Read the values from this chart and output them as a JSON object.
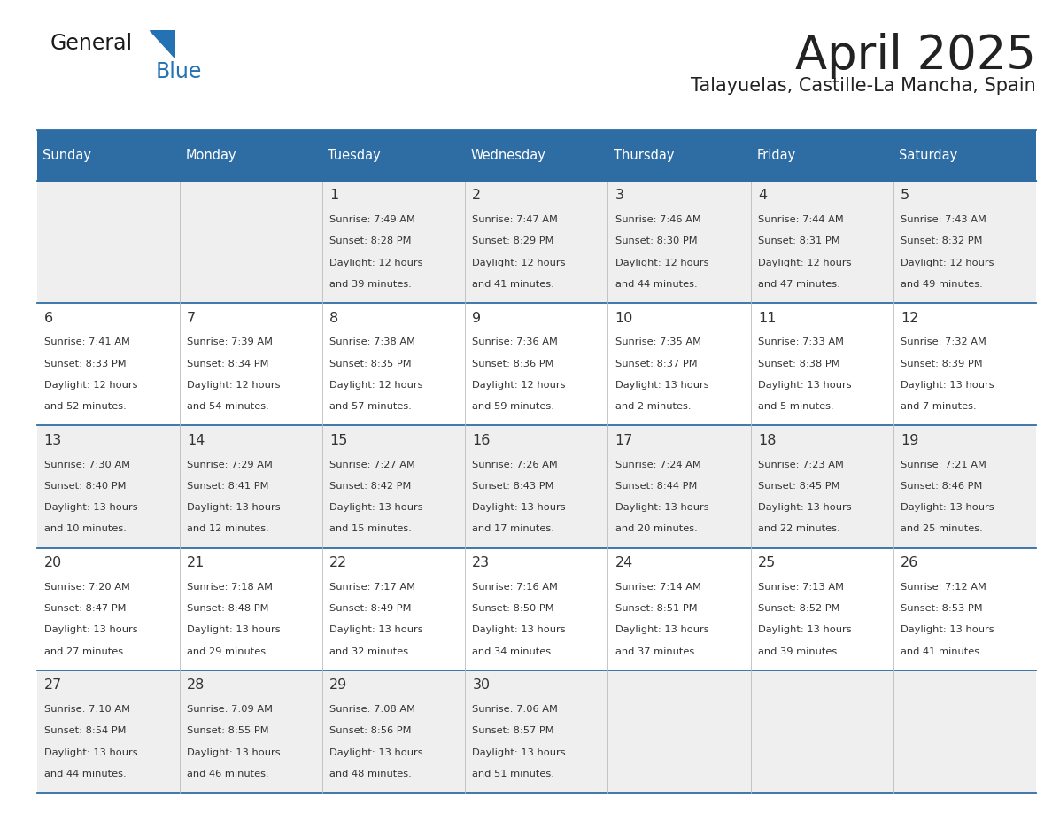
{
  "title": "April 2025",
  "subtitle": "Talayuelas, Castille-La Mancha, Spain",
  "days_of_week": [
    "Sunday",
    "Monday",
    "Tuesday",
    "Wednesday",
    "Thursday",
    "Friday",
    "Saturday"
  ],
  "header_bg": "#2E6DA4",
  "header_text": "#FFFFFF",
  "row_bg_odd": "#EFEFEF",
  "row_bg_even": "#FFFFFF",
  "border_color": "#2E6DA4",
  "text_color": "#333333",
  "title_color": "#222222",
  "subtitle_color": "#222222",
  "weeks": [
    [
      {
        "day": null,
        "sunrise": null,
        "sunset": null,
        "daylight_hours": null,
        "daylight_minutes": null
      },
      {
        "day": null,
        "sunrise": null,
        "sunset": null,
        "daylight_hours": null,
        "daylight_minutes": null
      },
      {
        "day": 1,
        "sunrise": "7:49 AM",
        "sunset": "8:28 PM",
        "daylight_hours": 12,
        "daylight_minutes": 39
      },
      {
        "day": 2,
        "sunrise": "7:47 AM",
        "sunset": "8:29 PM",
        "daylight_hours": 12,
        "daylight_minutes": 41
      },
      {
        "day": 3,
        "sunrise": "7:46 AM",
        "sunset": "8:30 PM",
        "daylight_hours": 12,
        "daylight_minutes": 44
      },
      {
        "day": 4,
        "sunrise": "7:44 AM",
        "sunset": "8:31 PM",
        "daylight_hours": 12,
        "daylight_minutes": 47
      },
      {
        "day": 5,
        "sunrise": "7:43 AM",
        "sunset": "8:32 PM",
        "daylight_hours": 12,
        "daylight_minutes": 49
      }
    ],
    [
      {
        "day": 6,
        "sunrise": "7:41 AM",
        "sunset": "8:33 PM",
        "daylight_hours": 12,
        "daylight_minutes": 52
      },
      {
        "day": 7,
        "sunrise": "7:39 AM",
        "sunset": "8:34 PM",
        "daylight_hours": 12,
        "daylight_minutes": 54
      },
      {
        "day": 8,
        "sunrise": "7:38 AM",
        "sunset": "8:35 PM",
        "daylight_hours": 12,
        "daylight_minutes": 57
      },
      {
        "day": 9,
        "sunrise": "7:36 AM",
        "sunset": "8:36 PM",
        "daylight_hours": 12,
        "daylight_minutes": 59
      },
      {
        "day": 10,
        "sunrise": "7:35 AM",
        "sunset": "8:37 PM",
        "daylight_hours": 13,
        "daylight_minutes": 2
      },
      {
        "day": 11,
        "sunrise": "7:33 AM",
        "sunset": "8:38 PM",
        "daylight_hours": 13,
        "daylight_minutes": 5
      },
      {
        "day": 12,
        "sunrise": "7:32 AM",
        "sunset": "8:39 PM",
        "daylight_hours": 13,
        "daylight_minutes": 7
      }
    ],
    [
      {
        "day": 13,
        "sunrise": "7:30 AM",
        "sunset": "8:40 PM",
        "daylight_hours": 13,
        "daylight_minutes": 10
      },
      {
        "day": 14,
        "sunrise": "7:29 AM",
        "sunset": "8:41 PM",
        "daylight_hours": 13,
        "daylight_minutes": 12
      },
      {
        "day": 15,
        "sunrise": "7:27 AM",
        "sunset": "8:42 PM",
        "daylight_hours": 13,
        "daylight_minutes": 15
      },
      {
        "day": 16,
        "sunrise": "7:26 AM",
        "sunset": "8:43 PM",
        "daylight_hours": 13,
        "daylight_minutes": 17
      },
      {
        "day": 17,
        "sunrise": "7:24 AM",
        "sunset": "8:44 PM",
        "daylight_hours": 13,
        "daylight_minutes": 20
      },
      {
        "day": 18,
        "sunrise": "7:23 AM",
        "sunset": "8:45 PM",
        "daylight_hours": 13,
        "daylight_minutes": 22
      },
      {
        "day": 19,
        "sunrise": "7:21 AM",
        "sunset": "8:46 PM",
        "daylight_hours": 13,
        "daylight_minutes": 25
      }
    ],
    [
      {
        "day": 20,
        "sunrise": "7:20 AM",
        "sunset": "8:47 PM",
        "daylight_hours": 13,
        "daylight_minutes": 27
      },
      {
        "day": 21,
        "sunrise": "7:18 AM",
        "sunset": "8:48 PM",
        "daylight_hours": 13,
        "daylight_minutes": 29
      },
      {
        "day": 22,
        "sunrise": "7:17 AM",
        "sunset": "8:49 PM",
        "daylight_hours": 13,
        "daylight_minutes": 32
      },
      {
        "day": 23,
        "sunrise": "7:16 AM",
        "sunset": "8:50 PM",
        "daylight_hours": 13,
        "daylight_minutes": 34
      },
      {
        "day": 24,
        "sunrise": "7:14 AM",
        "sunset": "8:51 PM",
        "daylight_hours": 13,
        "daylight_minutes": 37
      },
      {
        "day": 25,
        "sunrise": "7:13 AM",
        "sunset": "8:52 PM",
        "daylight_hours": 13,
        "daylight_minutes": 39
      },
      {
        "day": 26,
        "sunrise": "7:12 AM",
        "sunset": "8:53 PM",
        "daylight_hours": 13,
        "daylight_minutes": 41
      }
    ],
    [
      {
        "day": 27,
        "sunrise": "7:10 AM",
        "sunset": "8:54 PM",
        "daylight_hours": 13,
        "daylight_minutes": 44
      },
      {
        "day": 28,
        "sunrise": "7:09 AM",
        "sunset": "8:55 PM",
        "daylight_hours": 13,
        "daylight_minutes": 46
      },
      {
        "day": 29,
        "sunrise": "7:08 AM",
        "sunset": "8:56 PM",
        "daylight_hours": 13,
        "daylight_minutes": 48
      },
      {
        "day": 30,
        "sunrise": "7:06 AM",
        "sunset": "8:57 PM",
        "daylight_hours": 13,
        "daylight_minutes": 51
      },
      {
        "day": null,
        "sunrise": null,
        "sunset": null,
        "daylight_hours": null,
        "daylight_minutes": null
      },
      {
        "day": null,
        "sunrise": null,
        "sunset": null,
        "daylight_hours": null,
        "daylight_minutes": null
      },
      {
        "day": null,
        "sunrise": null,
        "sunset": null,
        "daylight_hours": null,
        "daylight_minutes": null
      }
    ]
  ]
}
